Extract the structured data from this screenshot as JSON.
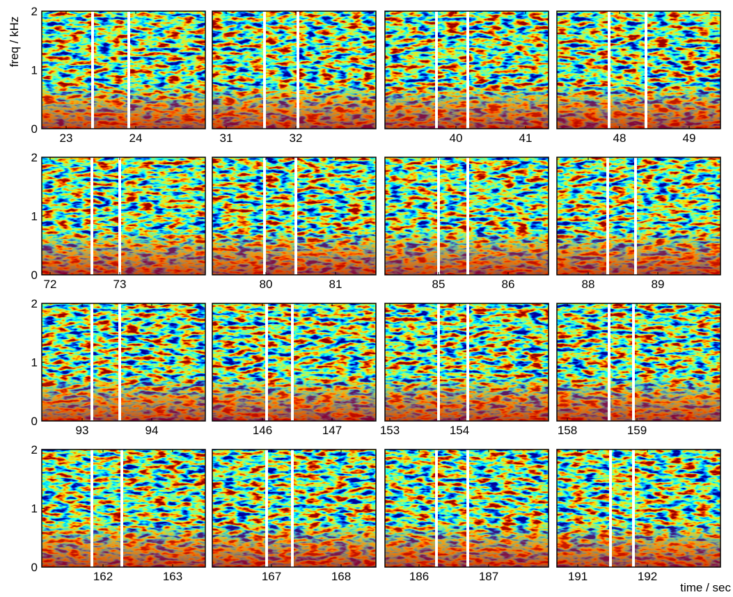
{
  "ylabel": "freq / kHz",
  "xlabel": "time / sec",
  "chart_data": [
    {
      "type": "spectrogram",
      "xlim": [
        22.65,
        25.0
      ],
      "ylim": [
        0,
        2
      ],
      "xticks": [
        23,
        24
      ],
      "yticks": [
        0,
        1,
        2
      ],
      "lines": [
        23.38,
        23.9
      ]
    },
    {
      "type": "spectrogram",
      "xlim": [
        30.8,
        33.15
      ],
      "ylim": [
        0,
        2
      ],
      "xticks": [
        31,
        32
      ],
      "lines": [
        31.55,
        32.03
      ]
    },
    {
      "type": "spectrogram",
      "xlim": [
        38.98,
        41.33
      ],
      "ylim": [
        0,
        2
      ],
      "xticks": [
        40,
        41
      ],
      "lines": [
        39.72,
        40.17
      ]
    },
    {
      "type": "spectrogram",
      "xlim": [
        47.1,
        49.45
      ],
      "ylim": [
        0,
        2
      ],
      "xticks": [
        48,
        49
      ],
      "lines": [
        47.85,
        48.38
      ]
    },
    {
      "type": "spectrogram",
      "xlim": [
        71.88,
        74.23
      ],
      "ylim": [
        0,
        2
      ],
      "xticks": [
        72,
        73
      ],
      "yticks": [
        0,
        1,
        2
      ],
      "lines": [
        72.6,
        73.0
      ]
    },
    {
      "type": "spectrogram",
      "xlim": [
        79.23,
        81.58
      ],
      "ylim": [
        0,
        2
      ],
      "xticks": [
        80,
        81
      ],
      "lines": [
        79.98,
        80.43
      ]
    },
    {
      "type": "spectrogram",
      "xlim": [
        84.23,
        86.58
      ],
      "ylim": [
        0,
        2
      ],
      "xticks": [
        85,
        86
      ],
      "lines": [
        85.0,
        85.42
      ]
    },
    {
      "type": "spectrogram",
      "xlim": [
        87.55,
        89.9
      ],
      "ylim": [
        0,
        2
      ],
      "xticks": [
        88,
        89
      ],
      "lines": [
        88.28,
        88.68
      ]
    },
    {
      "type": "spectrogram",
      "xlim": [
        92.42,
        94.77
      ],
      "ylim": [
        0,
        2
      ],
      "xticks": [
        93,
        94
      ],
      "yticks": [
        0,
        1,
        2
      ],
      "lines": [
        93.14,
        93.54
      ]
    },
    {
      "type": "spectrogram",
      "xlim": [
        145.28,
        147.63
      ],
      "ylim": [
        0,
        2
      ],
      "xticks": [
        146,
        147
      ],
      "lines": [
        146.06,
        146.43
      ]
    },
    {
      "type": "spectrogram",
      "xlim": [
        152.93,
        155.28
      ],
      "ylim": [
        0,
        2
      ],
      "xticks": [
        153,
        154
      ],
      "lines": [
        153.7,
        154.12
      ]
    },
    {
      "type": "spectrogram",
      "xlim": [
        157.85,
        160.2
      ],
      "ylim": [
        0,
        2
      ],
      "xticks": [
        158,
        159
      ],
      "lines": [
        158.6,
        158.95
      ]
    },
    {
      "type": "spectrogram",
      "xlim": [
        161.12,
        163.47
      ],
      "ylim": [
        0,
        2
      ],
      "xticks": [
        162,
        163
      ],
      "yticks": [
        0,
        1,
        2
      ],
      "lines": [
        161.84,
        162.27
      ]
    },
    {
      "type": "spectrogram",
      "xlim": [
        166.15,
        168.5
      ],
      "ylim": [
        0,
        2
      ],
      "xticks": [
        167,
        168
      ],
      "lines": [
        166.93,
        167.3
      ]
    },
    {
      "type": "spectrogram",
      "xlim": [
        185.51,
        187.86
      ],
      "ylim": [
        0,
        2
      ],
      "xticks": [
        186,
        187
      ],
      "lines": [
        186.25,
        186.7
      ]
    },
    {
      "type": "spectrogram",
      "xlim": [
        190.7,
        193.05
      ],
      "ylim": [
        0,
        2
      ],
      "xticks": [
        191,
        192
      ],
      "lines": [
        191.47,
        191.8
      ]
    }
  ]
}
